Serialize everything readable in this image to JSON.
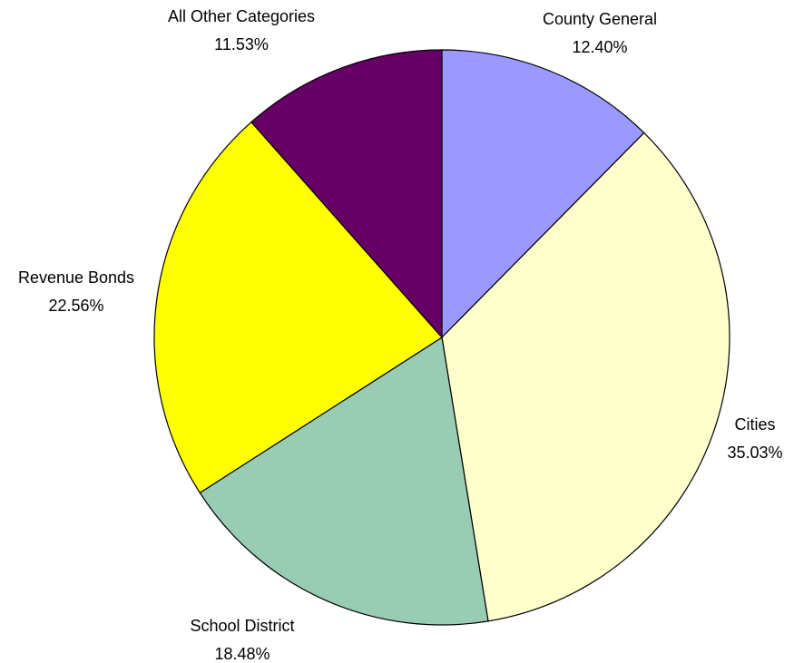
{
  "chart_data": {
    "type": "pie",
    "title": "",
    "start_angle_deg": 0,
    "direction": "clockwise",
    "slices": [
      {
        "label": "County General",
        "value": 12.4,
        "value_label": "12.40%",
        "color": "#9999ff"
      },
      {
        "label": "Cities",
        "value": 35.03,
        "value_label": "35.03%",
        "color": "#ffffcc"
      },
      {
        "label": "School District",
        "value": 18.48,
        "value_label": "18.48%",
        "color": "#99ccb4"
      },
      {
        "label": "Revenue Bonds",
        "value": 22.56,
        "value_label": "22.56%",
        "color": "#ffff00"
      },
      {
        "label": "All Other Categories",
        "value": 11.53,
        "value_label": "11.53%",
        "color": "#660066"
      }
    ]
  }
}
